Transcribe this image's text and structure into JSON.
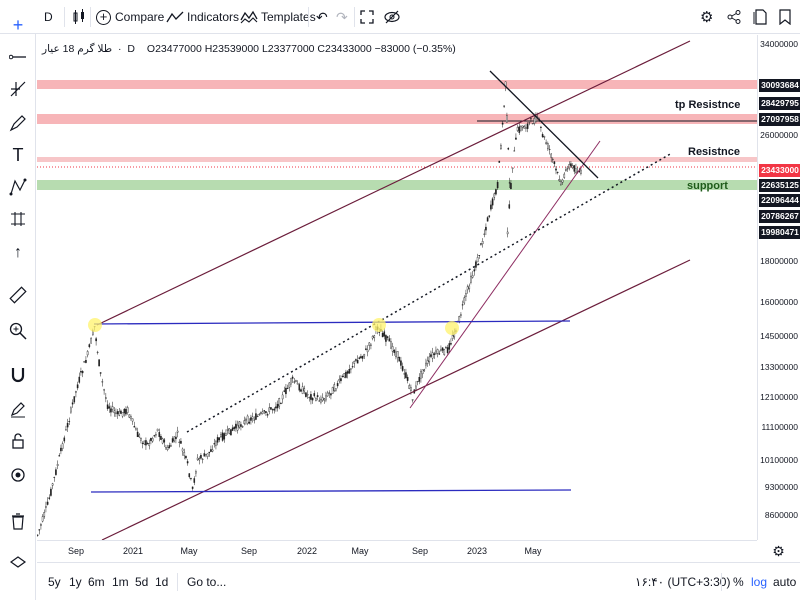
{
  "toolbar": {
    "interval": "D",
    "compare_label": "Compare",
    "indicators_label": "Indicators",
    "templates_label": "Templates"
  },
  "legend": {
    "symbol": "طلا گرم 18 عیار",
    "interval": "D",
    "ohlc": "O23477000  H23539000  L23377000  C23433000  −83000 (−0.35%)"
  },
  "annotations": {
    "tp_resistance": "tp  Resistnce",
    "resistance": "Resistnce",
    "support": "support"
  },
  "price_axis": {
    "ticks": [
      "34000000",
      "26000000",
      "24000000",
      "18000000",
      "16000000",
      "14500000",
      "13300000",
      "12100000",
      "11100000",
      "10100000",
      "9300000",
      "8600000"
    ],
    "tags": {
      "r1": "30093684",
      "r2": "28429795",
      "r3": "27097958",
      "last": "23433000",
      "s1": "22635125",
      "s2": "22096444",
      "s3": "20786267",
      "s4": "19980471"
    }
  },
  "time_axis": {
    "labels": [
      "Sep",
      "2021",
      "May",
      "Sep",
      "2022",
      "May",
      "Sep",
      "2023",
      "May"
    ]
  },
  "bottom": {
    "ranges": [
      "5y",
      "1y",
      "6m",
      "1m",
      "5d",
      "1d"
    ],
    "goto": "Go to...",
    "clock": "۱۶:۴۰ (UTC+3:30)",
    "percent": "%",
    "log": "log",
    "auto": "auto"
  },
  "colors": {
    "resistance_band": "#f7b5b8",
    "support_band": "#b7dcb0",
    "channel": "#6b1d3b",
    "horizontal_blue": "#2b2bbf",
    "last_price": "#f23645"
  }
}
